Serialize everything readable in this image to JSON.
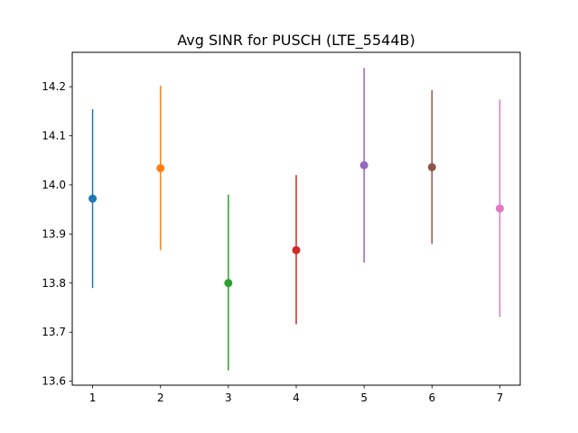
{
  "chart_data": {
    "type": "scatter",
    "title": "Avg SINR for PUSCH (LTE_5544B)",
    "xlabel": "",
    "ylabel": "",
    "xlim": [
      0.7,
      7.3
    ],
    "ylim": [
      13.592,
      14.27
    ],
    "x_ticks": [
      1,
      2,
      3,
      4,
      5,
      6,
      7
    ],
    "y_ticks": [
      13.6,
      13.7,
      13.8,
      13.9,
      14.0,
      14.1,
      14.2
    ],
    "y_tick_labels": [
      "13.6",
      "13.7",
      "13.8",
      "13.9",
      "14.0",
      "14.1",
      "14.2"
    ],
    "grid": false,
    "legend": false,
    "points": [
      {
        "x": 1,
        "y": 13.972,
        "low": 13.79,
        "high": 14.154,
        "color": "#1f77b4"
      },
      {
        "x": 2,
        "y": 14.034,
        "low": 13.867,
        "high": 14.202,
        "color": "#ff7f0e"
      },
      {
        "x": 3,
        "y": 13.8,
        "low": 13.622,
        "high": 13.98,
        "color": "#2ca02c"
      },
      {
        "x": 4,
        "y": 13.867,
        "low": 13.716,
        "high": 14.02,
        "color": "#d62728"
      },
      {
        "x": 5,
        "y": 14.04,
        "low": 13.842,
        "high": 14.238,
        "color": "#9467bd"
      },
      {
        "x": 6,
        "y": 14.036,
        "low": 13.88,
        "high": 14.193,
        "color": "#8c564b"
      },
      {
        "x": 7,
        "y": 13.952,
        "low": 13.731,
        "high": 14.174,
        "color": "#e377c2"
      }
    ]
  }
}
